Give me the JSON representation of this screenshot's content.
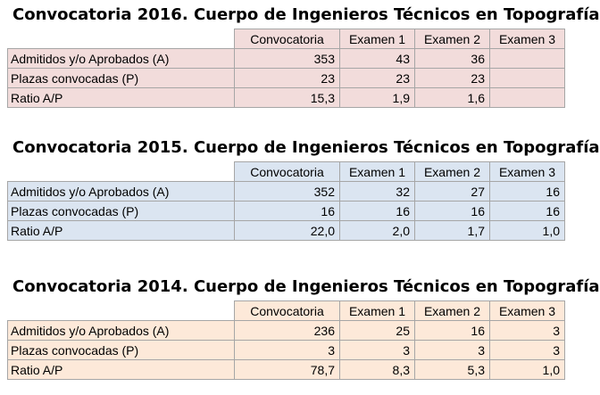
{
  "tables": [
    {
      "title": "Convocatoria 2016. Cuerpo de Ingenieros Técnicos en Topografía",
      "color": "#f2dcdb",
      "headers": [
        "Convocatoria",
        "Examen 1",
        "Examen 2",
        "Examen 3"
      ],
      "rows": [
        {
          "label": "Admitidos y/o Aprobados (A)",
          "values": [
            "353",
            "43",
            "36",
            ""
          ]
        },
        {
          "label": "Plazas convocadas (P)",
          "values": [
            "23",
            "23",
            "23",
            ""
          ]
        },
        {
          "label": "Ratio A/P",
          "values": [
            "15,3",
            "1,9",
            "1,6",
            ""
          ]
        }
      ]
    },
    {
      "title": "Convocatoria 2015. Cuerpo de Ingenieros Técnicos en Topografía",
      "color": "#dbe5f1",
      "headers": [
        "Convocatoria",
        "Examen 1",
        "Examen 2",
        "Examen 3"
      ],
      "rows": [
        {
          "label": "Admitidos y/o Aprobados (A)",
          "values": [
            "352",
            "32",
            "27",
            "16"
          ]
        },
        {
          "label": "Plazas convocadas (P)",
          "values": [
            "16",
            "16",
            "16",
            "16"
          ]
        },
        {
          "label": "Ratio A/P",
          "values": [
            "22,0",
            "2,0",
            "1,7",
            "1,0"
          ]
        }
      ]
    },
    {
      "title": "Convocatoria 2014. Cuerpo de Ingenieros Técnicos en Topografía",
      "color": "#fde9d9",
      "headers": [
        "Convocatoria",
        "Examen 1",
        "Examen 2",
        "Examen 3"
      ],
      "rows": [
        {
          "label": "Admitidos y/o Aprobados (A)",
          "values": [
            "236",
            "25",
            "16",
            "3"
          ]
        },
        {
          "label": "Plazas convocadas (P)",
          "values": [
            "3",
            "3",
            "3",
            "3"
          ]
        },
        {
          "label": "Ratio A/P",
          "values": [
            "78,7",
            "8,3",
            "5,3",
            "1,0"
          ]
        }
      ]
    }
  ]
}
